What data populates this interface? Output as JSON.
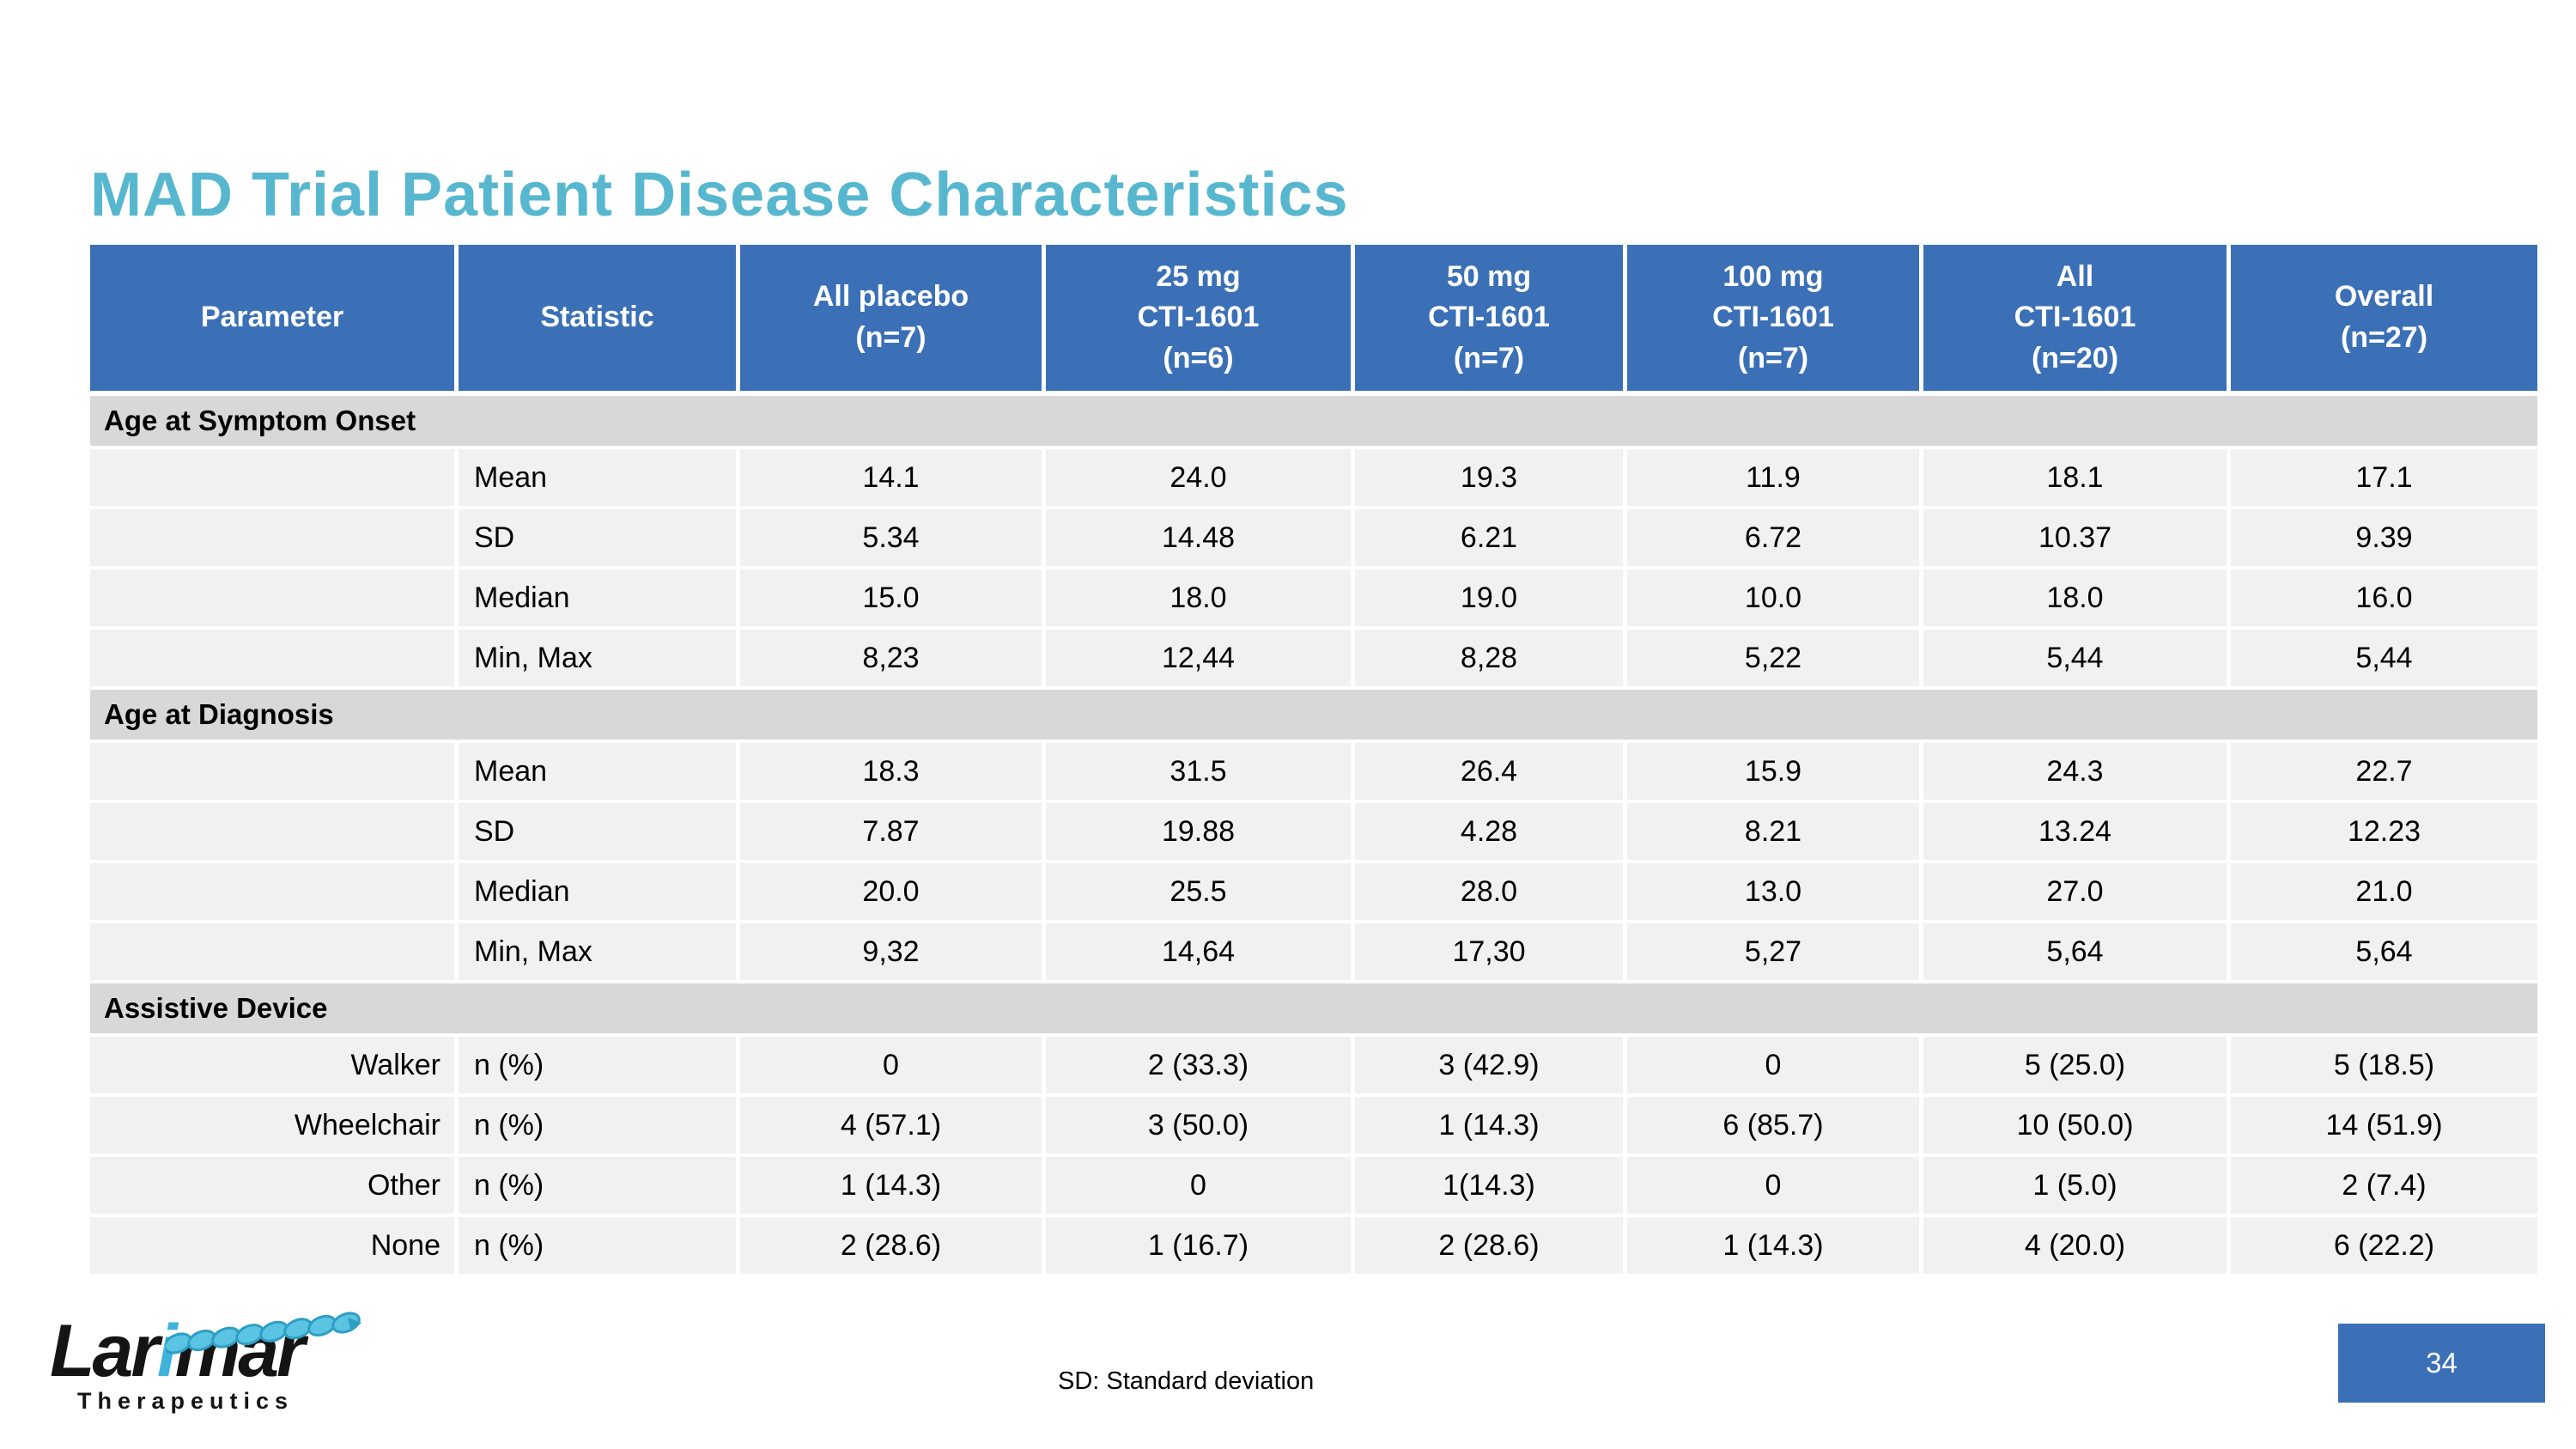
{
  "slide": {
    "title": "MAD Trial Patient Disease Characteristics"
  },
  "colors": {
    "title_teal": "#57B7CF",
    "header_blue": "#3B70B7",
    "section_grey": "#D8D8D8",
    "row_grey": "#F1F1F1",
    "separator_white": "#FFFFFF",
    "logo_accent_blue": "#3FB3DC",
    "helix_blue": "#5BC4E2"
  },
  "table": {
    "columns": [
      "Parameter",
      "Statistic",
      "All placebo\n(n=7)",
      "25 mg\nCTI-1601\n(n=6)",
      "50 mg\nCTI-1601\n(n=7)",
      "100 mg\nCTI-1601\n(n=7)",
      "All\nCTI-1601\n(n=20)",
      "Overall\n(n=27)"
    ],
    "sections": [
      {
        "label": "Age at Symptom Onset",
        "rows": [
          {
            "parameter": "",
            "statistic": "Mean",
            "values": [
              "14.1",
              "24.0",
              "19.3",
              "11.9",
              "18.1",
              "17.1"
            ]
          },
          {
            "parameter": "",
            "statistic": "SD",
            "values": [
              "5.34",
              "14.48",
              "6.21",
              "6.72",
              "10.37",
              "9.39"
            ]
          },
          {
            "parameter": "",
            "statistic": "Median",
            "values": [
              "15.0",
              "18.0",
              "19.0",
              "10.0",
              "18.0",
              "16.0"
            ]
          },
          {
            "parameter": "",
            "statistic": "Min, Max",
            "values": [
              "8,23",
              "12,44",
              "8,28",
              "5,22",
              "5,44",
              "5,44"
            ]
          }
        ]
      },
      {
        "label": "Age at Diagnosis",
        "rows": [
          {
            "parameter": "",
            "statistic": "Mean",
            "values": [
              "18.3",
              "31.5",
              "26.4",
              "15.9",
              "24.3",
              "22.7"
            ]
          },
          {
            "parameter": "",
            "statistic": "SD",
            "values": [
              "7.87",
              "19.88",
              "4.28",
              "8.21",
              "13.24",
              "12.23"
            ]
          },
          {
            "parameter": "",
            "statistic": "Median",
            "values": [
              "20.0",
              "25.5",
              "28.0",
              "13.0",
              "27.0",
              "21.0"
            ]
          },
          {
            "parameter": "",
            "statistic": "Min, Max",
            "values": [
              "9,32",
              "14,64",
              "17,30",
              "5,27",
              "5,64",
              "5,64"
            ]
          }
        ]
      },
      {
        "label": "Assistive Device",
        "rows": [
          {
            "parameter": "Walker",
            "statistic": "n (%)",
            "values": [
              "0",
              "2 (33.3)",
              "3 (42.9)",
              "0",
              "5 (25.0)",
              "5 (18.5)"
            ]
          },
          {
            "parameter": "Wheelchair",
            "statistic": "n (%)",
            "values": [
              "4 (57.1)",
              "3 (50.0)",
              "1 (14.3)",
              "6 (85.7)",
              "10 (50.0)",
              "14 (51.9)"
            ]
          },
          {
            "parameter": "Other",
            "statistic": "n (%)",
            "values": [
              "1 (14.3)",
              "0",
              "1(14.3)",
              "0",
              "1 (5.0)",
              "2 (7.4)"
            ]
          },
          {
            "parameter": "None",
            "statistic": "n (%)",
            "values": [
              "2 (28.6)",
              "1 (16.7)",
              "2 (28.6)",
              "1 (14.3)",
              "4 (20.0)",
              "6 (22.2)"
            ]
          }
        ]
      }
    ]
  },
  "footer": {
    "note": "SD: Standard deviation",
    "page_number": "34",
    "logo": {
      "part1": "Lar",
      "accent": "i",
      "part2": "mar",
      "subtitle": "Therapeutics"
    }
  }
}
